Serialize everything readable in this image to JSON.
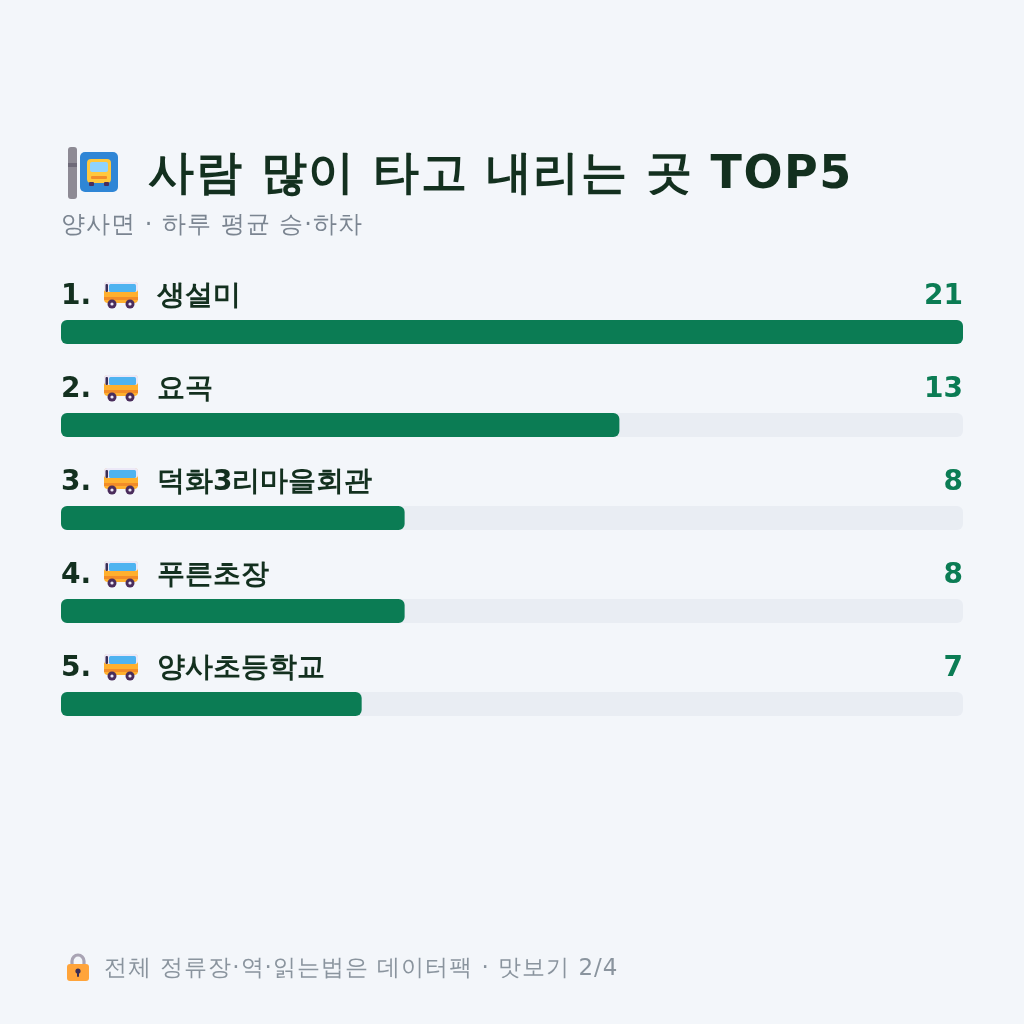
{
  "chart_data": {
    "type": "bar",
    "orientation": "horizontal",
    "title": "사람 많이 타고 내리는 곳 TOP5",
    "subtitle": "양사면 · 하루 평균 승·하차",
    "categories": [
      "1. 생설미",
      "2. 요곡",
      "3. 덕화3리마을회관",
      "4. 푸른초장",
      "5. 양사초등학교"
    ],
    "values": [
      21,
      13,
      8,
      8,
      7
    ],
    "color": "#0b7c54",
    "data_labels": true,
    "tick_labels": "y",
    "annotations": [
      "전체 정류장·역·읽는법은 데이터팩 · 맛보기 2/4"
    ]
  }
}
